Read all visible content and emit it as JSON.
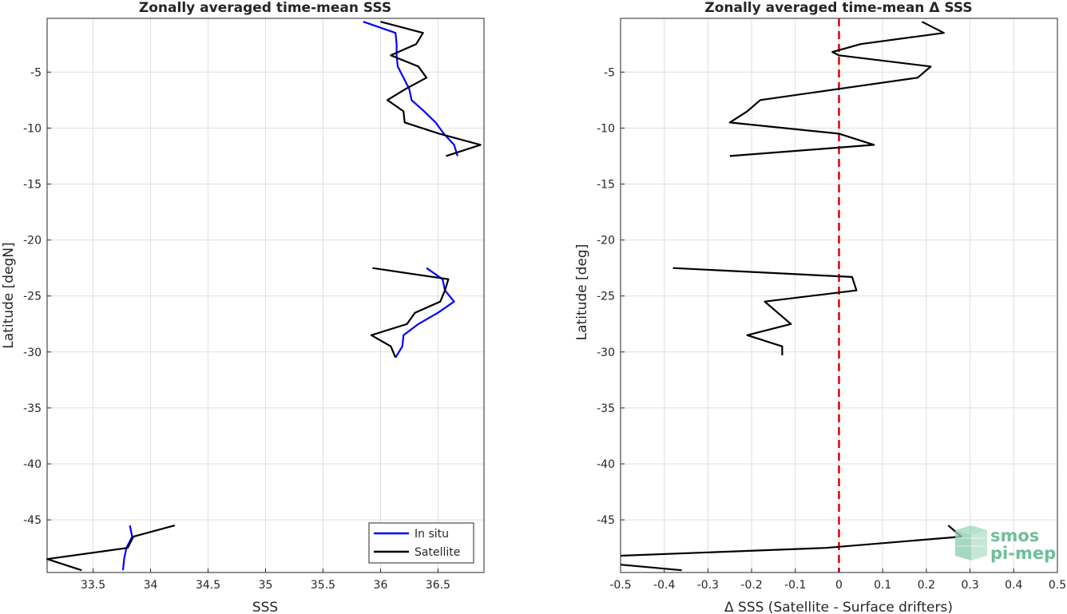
{
  "colors": {
    "in_situ": "#0000ff",
    "satellite": "#000000",
    "zero_line": "#e00000",
    "logo_cube": "#8fcfb0",
    "logo_text": "#6fbf98"
  },
  "logo": {
    "line1": "smos",
    "line2": "pi-mep"
  },
  "chart_data": [
    {
      "type": "line",
      "title": "Zonally averaged time-mean SSS",
      "xlabel": "SSS",
      "ylabel": "Latitude [degN]",
      "xlim": [
        33.1,
        36.9
      ],
      "ylim": [
        -49.7,
        -0.2
      ],
      "x_ticks": [
        33.5,
        34,
        34.5,
        35,
        35.5,
        36,
        36.5
      ],
      "x_tick_labels": [
        "33.5",
        "34",
        "34.5",
        "35",
        "35.5",
        "36",
        "36.5"
      ],
      "y_ticks": [
        -5,
        -10,
        -15,
        -20,
        -25,
        -30,
        -35,
        -40,
        -45
      ],
      "y_tick_labels": [
        "-5",
        "-10",
        "-15",
        "-20",
        "-25",
        "-30",
        "-35",
        "-40",
        "-45"
      ],
      "grid": true,
      "legend_position": "bottom-right",
      "series": [
        {
          "name": "In situ",
          "segments": [
            [
              [
                35.85,
                -0.5
              ],
              [
                36.13,
                -1.5
              ],
              [
                36.14,
                -2.5
              ],
              [
                36.14,
                -3.5
              ],
              [
                36.15,
                -4.5
              ],
              [
                36.2,
                -5.5
              ],
              [
                36.25,
                -6.5
              ],
              [
                36.27,
                -7.5
              ],
              [
                36.38,
                -8.5
              ],
              [
                36.48,
                -9.5
              ],
              [
                36.55,
                -10.5
              ],
              [
                36.64,
                -11.5
              ],
              [
                36.67,
                -12.5
              ]
            ],
            [
              [
                36.4,
                -22.5
              ],
              [
                36.54,
                -23.5
              ],
              [
                36.56,
                -24.5
              ],
              [
                36.64,
                -25.5
              ],
              [
                36.5,
                -26.5
              ],
              [
                36.33,
                -27.5
              ],
              [
                36.2,
                -28.5
              ],
              [
                36.19,
                -29.5
              ],
              [
                36.13,
                -30.5
              ]
            ],
            [
              [
                33.82,
                -45.5
              ],
              [
                33.84,
                -46.5
              ],
              [
                33.79,
                -47.5
              ],
              [
                33.77,
                -48.5
              ],
              [
                33.76,
                -49.5
              ]
            ]
          ]
        },
        {
          "name": "Satellite",
          "segments": [
            [
              [
                36.0,
                -0.5
              ],
              [
                36.37,
                -1.5
              ],
              [
                36.31,
                -2.5
              ],
              [
                36.09,
                -3.5
              ],
              [
                36.33,
                -4.5
              ],
              [
                36.4,
                -5.5
              ],
              [
                36.22,
                -6.5
              ],
              [
                36.06,
                -7.5
              ],
              [
                36.2,
                -8.5
              ],
              [
                36.21,
                -9.5
              ],
              [
                36.51,
                -10.5
              ],
              [
                36.87,
                -11.5
              ],
              [
                36.57,
                -12.5
              ]
            ],
            [
              [
                35.93,
                -22.5
              ],
              [
                36.59,
                -23.5
              ],
              [
                36.56,
                -24.5
              ],
              [
                36.52,
                -25.5
              ],
              [
                36.3,
                -26.5
              ],
              [
                36.23,
                -27.5
              ],
              [
                35.92,
                -28.5
              ],
              [
                36.09,
                -29.5
              ],
              [
                36.13,
                -30.5
              ]
            ],
            [
              [
                34.21,
                -45.5
              ],
              [
                33.85,
                -46.5
              ],
              [
                33.8,
                -47.5
              ],
              [
                33.1,
                -48.5
              ],
              [
                33.4,
                -49.5
              ]
            ]
          ]
        }
      ]
    },
    {
      "type": "line",
      "title": "Zonally averaged time-mean Δ SSS",
      "xlabel": "Δ SSS (Satellite - Surface drifters)",
      "ylabel": "Latitude [deg]",
      "xlim": [
        -0.5,
        0.5
      ],
      "ylim": [
        -49.7,
        -0.2
      ],
      "x_ticks": [
        -0.5,
        -0.4,
        -0.3,
        -0.2,
        -0.1,
        0,
        0.1,
        0.2,
        0.3,
        0.4,
        0.5
      ],
      "x_tick_labels": [
        "-0.5",
        "-0.4",
        "-0.3",
        "-0.2",
        "-0.1",
        "0",
        "0.1",
        "0.2",
        "0.3",
        "0.4",
        "0.5"
      ],
      "y_ticks": [
        -5,
        -10,
        -15,
        -20,
        -25,
        -30,
        -35,
        -40,
        -45
      ],
      "y_tick_labels": [
        "-5",
        "-10",
        "-15",
        "-20",
        "-25",
        "-30",
        "-35",
        "-40",
        "-45"
      ],
      "grid": true,
      "reference_line": {
        "x": 0,
        "style": "dashed"
      },
      "series": [
        {
          "segments": [
            [
              [
                0.19,
                -0.5
              ],
              [
                0.24,
                -1.5
              ],
              [
                0.05,
                -2.5
              ],
              [
                -0.015,
                -3.2
              ],
              [
                0.0,
                -3.5
              ],
              [
                0.21,
                -4.5
              ],
              [
                0.18,
                -5.5
              ],
              [
                0.0,
                -6.5
              ],
              [
                -0.18,
                -7.5
              ],
              [
                -0.21,
                -8.5
              ],
              [
                -0.25,
                -9.5
              ],
              [
                0.0,
                -10.5
              ],
              [
                0.08,
                -11.5
              ],
              [
                -0.25,
                -12.5
              ]
            ],
            [
              [
                -0.38,
                -22.5
              ],
              [
                0.03,
                -23.3
              ],
              [
                0.04,
                -24.5
              ],
              [
                -0.17,
                -25.5
              ],
              [
                -0.11,
                -27.5
              ],
              [
                -0.21,
                -28.5
              ],
              [
                -0.13,
                -29.5
              ],
              [
                -0.13,
                -30.3
              ]
            ],
            [
              [
                0.25,
                -45.5
              ],
              [
                0.28,
                -46.5
              ],
              [
                -0.03,
                -47.5
              ],
              [
                -0.5,
                -48.2
              ]
            ],
            [
              [
                -0.5,
                -49.0
              ],
              [
                -0.36,
                -49.5
              ]
            ]
          ]
        }
      ]
    }
  ]
}
